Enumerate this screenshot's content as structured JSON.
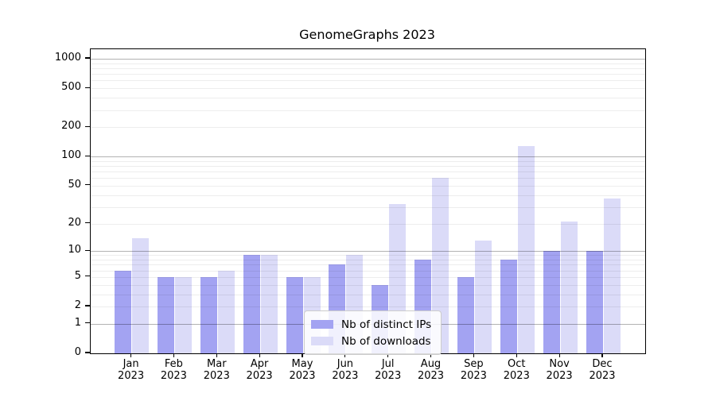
{
  "title": "GenomeGraphs 2023",
  "chart_data": {
    "type": "bar",
    "title": "GenomeGraphs 2023",
    "y_scale": "log1p",
    "ylim": [
      0,
      1250
    ],
    "grid": "on-horizontal",
    "legend_position": "inside-bottom-center",
    "year": "2023",
    "month_labels": [
      "Jan",
      "Feb",
      "Mar",
      "Apr",
      "May",
      "Jun",
      "Jul",
      "Aug",
      "Sep",
      "Oct",
      "Nov",
      "Dec"
    ],
    "categories": [
      "Jan 2023",
      "Feb 2023",
      "Mar 2023",
      "Apr 2023",
      "May 2023",
      "Jun 2023",
      "Jul 2023",
      "Aug 2023",
      "Sep 2023",
      "Oct 2023",
      "Nov 2023",
      "Dec 2023"
    ],
    "y_ticks": [
      0,
      1,
      2,
      5,
      10,
      20,
      50,
      100,
      200,
      500,
      1000
    ],
    "series": [
      {
        "name": "Nb of distinct IPs",
        "color": "#a3a3f2",
        "values": [
          6,
          5,
          5,
          9,
          5,
          7,
          4,
          8,
          5,
          8,
          10,
          10
        ]
      },
      {
        "name": "Nb of downloads",
        "color": "#dbdbf8",
        "values": [
          14,
          5,
          6,
          9,
          5,
          9,
          32,
          60,
          13,
          127,
          21,
          37
        ]
      }
    ]
  }
}
